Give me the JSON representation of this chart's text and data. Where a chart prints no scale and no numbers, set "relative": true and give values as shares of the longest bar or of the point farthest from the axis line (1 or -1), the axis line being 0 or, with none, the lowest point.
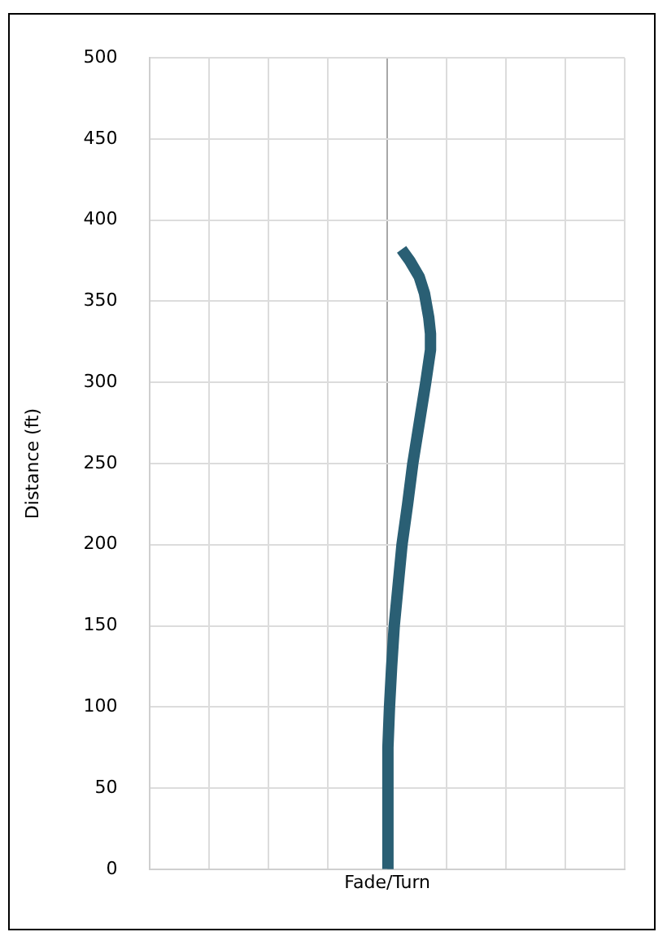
{
  "chart_data": {
    "type": "line",
    "orientation": "horizontal",
    "relative": true,
    "xlabel": "Fade/Turn",
    "ylabel": "Distance (ft)",
    "x": [
      0,
      25,
      50,
      75,
      100,
      125,
      150,
      175,
      200,
      225,
      250,
      275,
      300,
      320,
      330,
      340,
      355,
      365,
      375,
      382
    ],
    "series": [
      {
        "color": "#2a5f74",
        "values": [
          0,
          0,
          0.01,
          0.03,
          0.05,
          0.1,
          0.16,
          0.25,
          0.34,
          0.47,
          0.59,
          0.74,
          0.89,
          1,
          1,
          0.96,
          0.86,
          0.74,
          0.52,
          0.33
        ]
      }
    ],
    "ylim": [
      0,
      500
    ],
    "yticks": [
      0,
      50,
      100,
      150,
      200,
      250,
      300,
      350,
      400,
      450,
      500
    ],
    "grid": true,
    "tick_labels": "y",
    "marker": "none",
    "line_style": "solid"
  }
}
